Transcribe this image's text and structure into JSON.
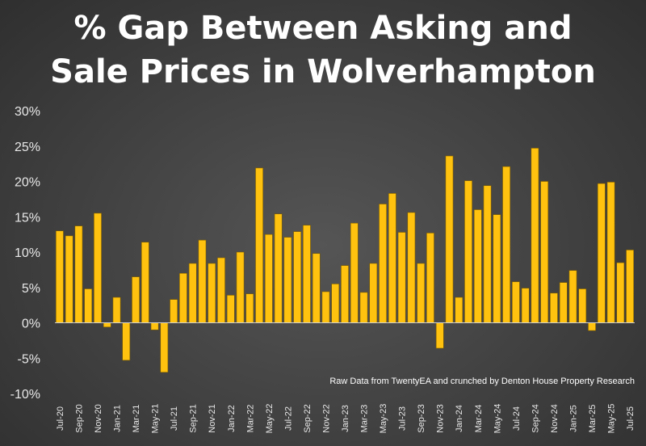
{
  "chart_data": {
    "type": "bar",
    "title_lines": [
      "% Gap Between Asking and",
      "Sale Prices in Wolverhampton"
    ],
    "annotation": "Raw Data from TwentyEA and crunched by Denton House Property Research",
    "bar_color": "#FFC20E",
    "bar_edge_color": "#7a5a00",
    "ylim": [
      -10,
      30
    ],
    "yticks": [
      -10,
      -5,
      0,
      5,
      10,
      15,
      20,
      25,
      30
    ],
    "ytick_labels": [
      "-10%",
      "-5%",
      "0%",
      "5%",
      "10%",
      "15%",
      "20%",
      "25%",
      "30%"
    ],
    "grid": false,
    "categories": [
      "Jul-20",
      "Aug-20",
      "Sep-20",
      "Oct-20",
      "Nov-20",
      "Dec-20",
      "Jan-21",
      "Feb-21",
      "Mar-21",
      "Apr-21",
      "May-21",
      "Jun-21",
      "Jul-21",
      "Aug-21",
      "Sep-21",
      "Oct-21",
      "Nov-21",
      "Dec-21",
      "Jan-22",
      "Feb-22",
      "Mar-22",
      "Apr-22",
      "May-22",
      "Jun-22",
      "Jul-22",
      "Aug-22",
      "Sep-22",
      "Oct-22",
      "Nov-22",
      "Dec-22",
      "Jan-23",
      "Feb-23",
      "Mar-23",
      "Apr-23",
      "May-23",
      "Jun-23",
      "Jul-23",
      "Aug-23",
      "Sep-23",
      "Oct-23",
      "Nov-23",
      "Dec-23",
      "Jan-24",
      "Feb-24",
      "Mar-24",
      "Apr-24",
      "May-24",
      "Jun-24",
      "Jul-24",
      "Aug-24",
      "Sep-24",
      "Oct-24",
      "Nov-24",
      "Dec-24",
      "Jan-25",
      "Feb-25",
      "Mar-25",
      "Apr-25",
      "May-25",
      "Jun-25",
      "Jul-25"
    ],
    "xtick_labels": [
      "Jul-20",
      "Sep-20",
      "Nov-20",
      "Jan-21",
      "Mar-21",
      "May-21",
      "Jul-21",
      "Sep-21",
      "Nov-21",
      "Jan-22",
      "Mar-22",
      "May-22",
      "Jul-22",
      "Sep-22",
      "Nov-22",
      "Jan-23",
      "Mar-23",
      "May-23",
      "Jul-23",
      "Sep-23",
      "Nov-23",
      "Jan-24",
      "Mar-24",
      "May-24",
      "Jul-24",
      "Sep-24",
      "Nov-24",
      "Jan-25",
      "Mar-25",
      "May-25",
      "Jul-25"
    ],
    "values": [
      13.0,
      12.3,
      13.7,
      4.8,
      15.5,
      -0.6,
      3.6,
      -5.3,
      6.5,
      11.4,
      -1.0,
      -7.0,
      3.3,
      7.0,
      8.4,
      11.7,
      8.4,
      9.2,
      3.9,
      10.0,
      4.1,
      21.9,
      12.5,
      15.4,
      12.1,
      12.9,
      13.8,
      9.8,
      4.4,
      5.5,
      8.1,
      14.1,
      4.3,
      8.4,
      16.8,
      18.3,
      12.8,
      15.6,
      8.4,
      12.7,
      -3.6,
      23.6,
      3.6,
      20.1,
      16.0,
      19.4,
      15.3,
      22.1,
      5.8,
      4.9,
      24.7,
      20.0,
      4.2,
      5.7,
      7.4,
      4.8,
      -1.1,
      19.7,
      19.9,
      8.5,
      10.3
    ]
  }
}
